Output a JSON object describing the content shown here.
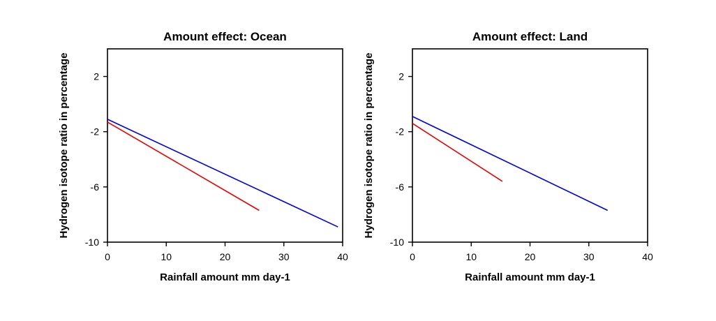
{
  "chart_data": [
    {
      "type": "line",
      "title": "Amount effect: Ocean",
      "xlabel": "Rainfall amount mm day-1",
      "ylabel": "Hydrogen isotope ratio in percentage",
      "xlim": [
        0,
        40
      ],
      "ylim": [
        -10,
        4
      ],
      "xticks": [
        0,
        10,
        20,
        30,
        40
      ],
      "yticks": [
        -10,
        -6,
        -2,
        2
      ],
      "series": [
        {
          "color": "#0000ee",
          "x": [
            0,
            39.2
          ],
          "y": [
            -1.1,
            -8.9
          ]
        },
        {
          "color": "#ee0000",
          "x": [
            0,
            25.8
          ],
          "y": [
            -1.3,
            -7.7
          ]
        }
      ]
    },
    {
      "type": "line",
      "title": "Amount effect: Land",
      "xlabel": "Rainfall amount mm day-1",
      "ylabel": "Hydrogen isotope ratio in percentage",
      "xlim": [
        0,
        40
      ],
      "ylim": [
        -10,
        4
      ],
      "xticks": [
        0,
        10,
        20,
        30,
        40
      ],
      "yticks": [
        -10,
        -6,
        -2,
        2
      ],
      "series": [
        {
          "color": "#0000ee",
          "x": [
            0,
            33.2
          ],
          "y": [
            -0.9,
            -7.7
          ]
        },
        {
          "color": "#ee0000",
          "x": [
            0,
            15.3
          ],
          "y": [
            -1.4,
            -5.6
          ]
        }
      ]
    }
  ]
}
